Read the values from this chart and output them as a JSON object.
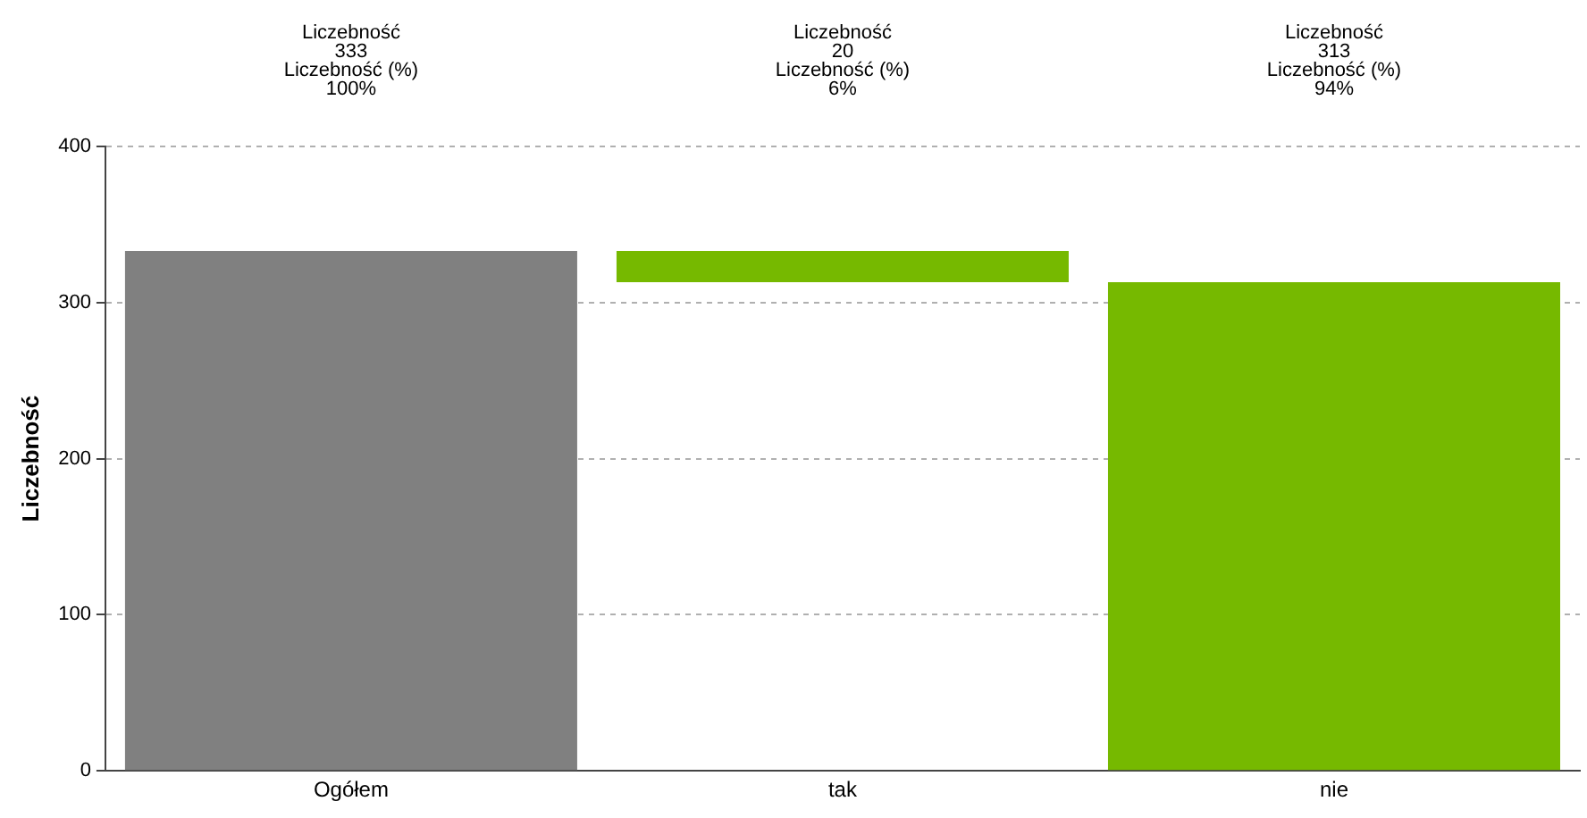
{
  "chart_data": {
    "type": "bar",
    "ylabel": "Liczebność",
    "categories": [
      "Ogółem",
      "tak",
      "nie"
    ],
    "values": [
      333,
      20,
      313
    ],
    "base": [
      0,
      313,
      0
    ],
    "colors": [
      "#808080",
      "#76b900",
      "#76b900"
    ],
    "value_labels": [
      "Liczebność\n333\nLiczebność (%)\n100%",
      "Liczebność\n20\nLiczebność (%)\n6%",
      "Liczebność\n313\nLiczebność (%)\n94%"
    ],
    "ylim": [
      0,
      400
    ],
    "yticks": [
      0,
      100,
      200,
      300,
      400
    ],
    "grid": "y",
    "legend": false
  }
}
